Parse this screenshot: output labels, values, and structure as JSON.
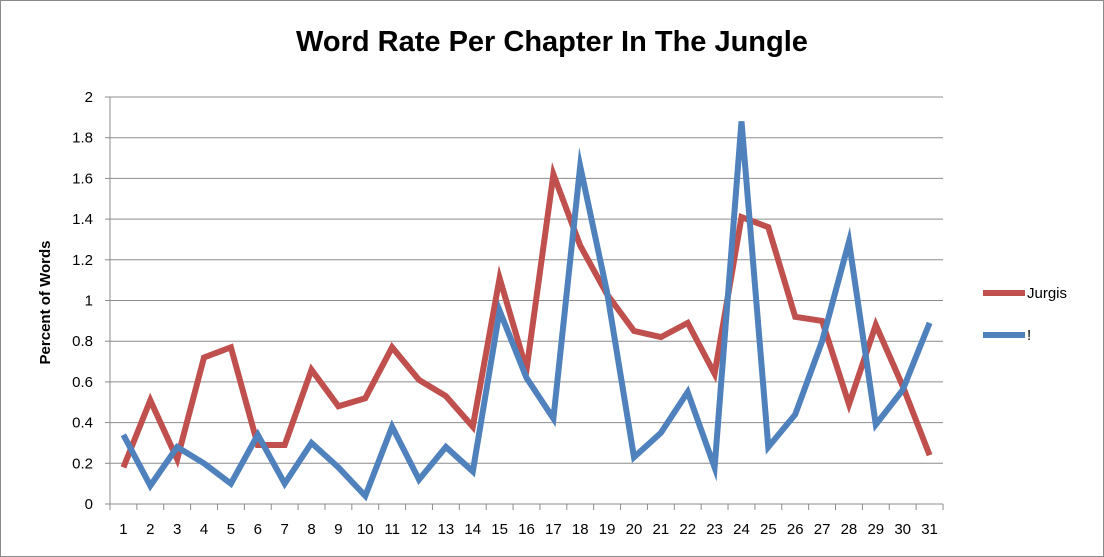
{
  "chart_data": {
    "type": "line",
    "title": "Word Rate Per Chapter In The Jungle",
    "xlabel": "",
    "ylabel": "Percent of Words",
    "categories": [
      "1",
      "2",
      "3",
      "4",
      "5",
      "6",
      "7",
      "8",
      "9",
      "10",
      "11",
      "12",
      "13",
      "14",
      "15",
      "16",
      "17",
      "18",
      "19",
      "20",
      "21",
      "22",
      "23",
      "24",
      "25",
      "26",
      "27",
      "28",
      "29",
      "30",
      "31"
    ],
    "ylim": [
      0,
      2
    ],
    "yticks": [
      "0",
      "0.2",
      "0.4",
      "0.6",
      "0.8",
      "1",
      "1.2",
      "1.4",
      "1.6",
      "1.8",
      "2"
    ],
    "grid": true,
    "legend_position": "right",
    "series": [
      {
        "name": "Jurgis",
        "color": "#c0504d",
        "values": [
          0.18,
          0.51,
          0.22,
          0.72,
          0.77,
          0.29,
          0.29,
          0.66,
          0.48,
          0.52,
          0.77,
          0.61,
          0.53,
          0.38,
          1.11,
          0.66,
          1.62,
          1.27,
          1.03,
          0.85,
          0.82,
          0.89,
          0.64,
          1.41,
          1.36,
          0.92,
          0.9,
          0.49,
          0.88,
          0.58,
          0.24
        ]
      },
      {
        "name": "!",
        "color": "#4f81bd",
        "values": [
          0.34,
          0.09,
          0.28,
          0.2,
          0.1,
          0.34,
          0.1,
          0.3,
          0.18,
          0.04,
          0.38,
          0.12,
          0.28,
          0.16,
          0.95,
          0.62,
          0.42,
          1.66,
          1.04,
          0.23,
          0.35,
          0.55,
          0.18,
          1.88,
          0.28,
          0.44,
          0.8,
          1.29,
          0.39,
          0.56,
          0.89
        ]
      }
    ]
  }
}
